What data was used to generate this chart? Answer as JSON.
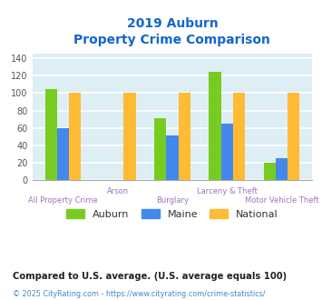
{
  "title_line1": "2019 Auburn",
  "title_line2": "Property Crime Comparison",
  "categories": [
    "All Property Crime",
    "Arson",
    "Burglary",
    "Larceny & Theft",
    "Motor Vehicle Theft"
  ],
  "auburn_values": [
    105,
    0,
    71,
    125,
    20
  ],
  "maine_values": [
    60,
    0,
    51,
    65,
    25
  ],
  "national_values": [
    100,
    100,
    100,
    100,
    100
  ],
  "auburn_color": "#77cc22",
  "maine_color": "#4488ee",
  "national_color": "#ffbb33",
  "bar_width": 0.22,
  "ylim": [
    0,
    145
  ],
  "yticks": [
    0,
    20,
    40,
    60,
    80,
    100,
    120,
    140
  ],
  "background_color": "#ddeef5",
  "grid_color": "#ffffff",
  "title_color": "#1166cc",
  "xlabel_color": "#9977bb",
  "legend_label_color": "#333333",
  "legend_labels": [
    "Auburn",
    "Maine",
    "National"
  ],
  "footnote1": "Compared to U.S. average. (U.S. average equals 100)",
  "footnote2": "© 2025 CityRating.com - https://www.cityrating.com/crime-statistics/",
  "footnote1_color": "#222222",
  "footnote2_color": "#4488cc"
}
